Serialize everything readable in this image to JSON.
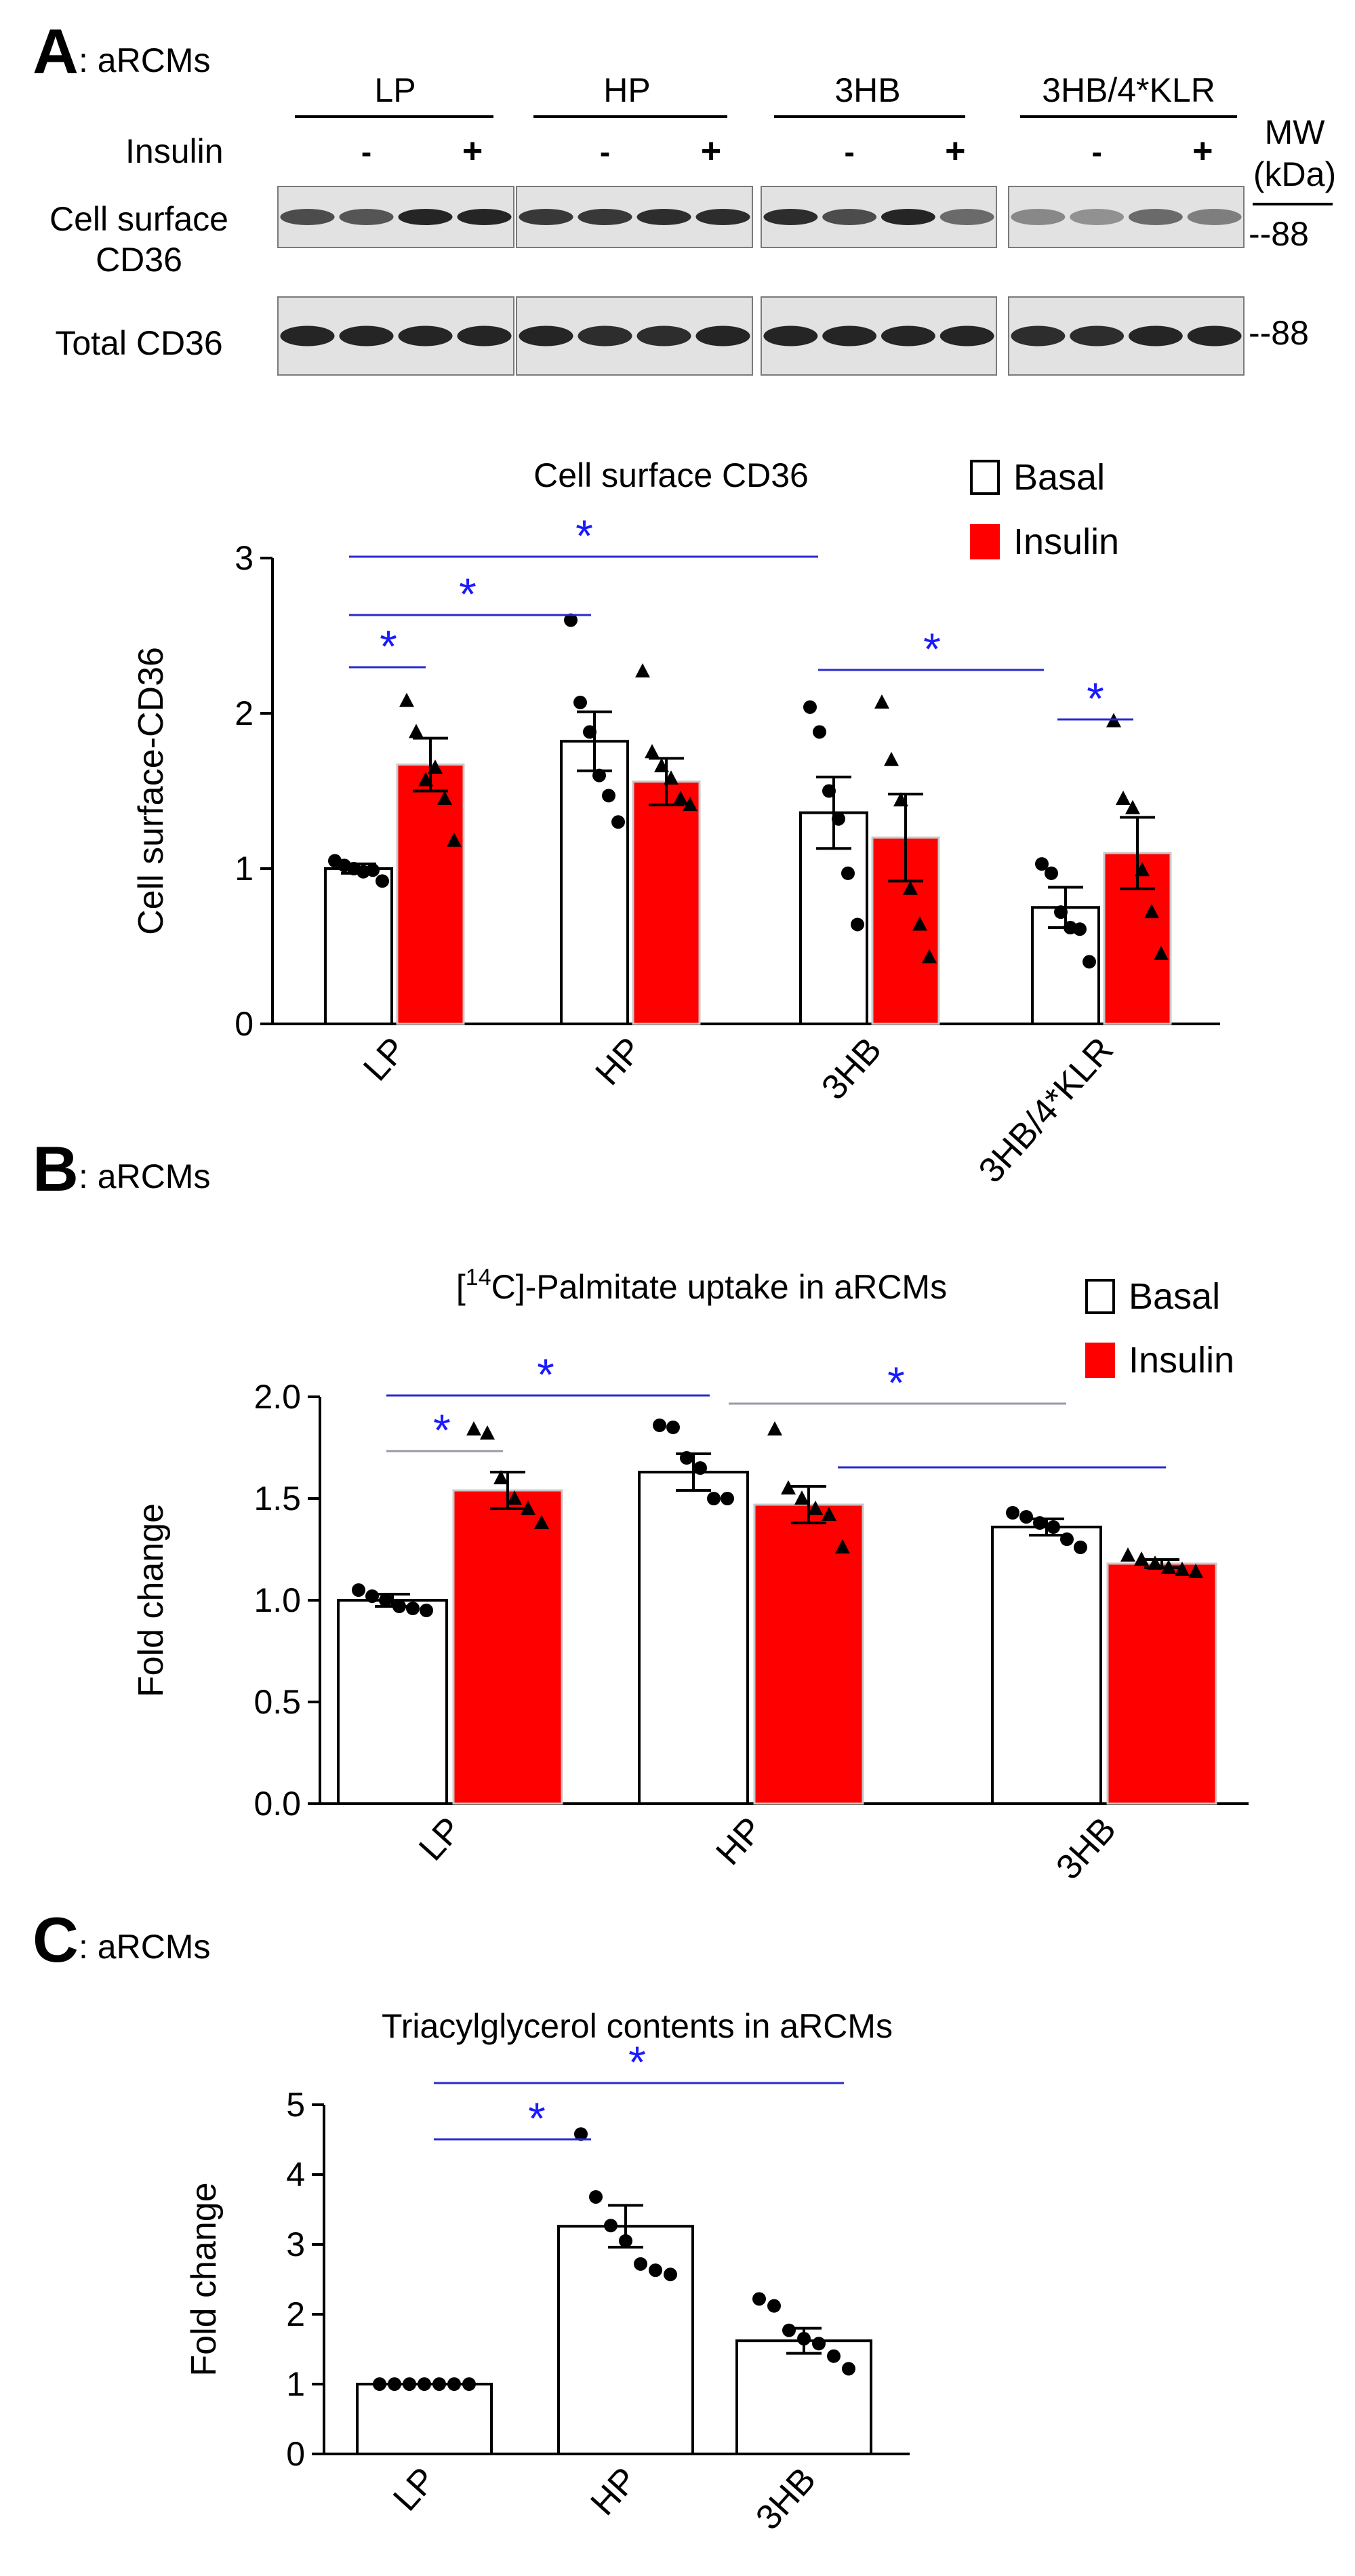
{
  "colors": {
    "insulin": "#ff0000",
    "basal": "#ffffff",
    "star": "#1a1aff",
    "line": "#2a2ad0",
    "grayline": "#9a9aa8",
    "blot_bg": "#e2e2e2",
    "band": "#1a1a1a"
  },
  "panelA": {
    "letter": "A",
    "suffix": ": aRCMs",
    "blot": {
      "groups": [
        "LP",
        "HP",
        "3HB",
        "3HB/4*KLR"
      ],
      "insulin_label": "Insulin",
      "minus": "-",
      "plus": "+",
      "mw_label": "MW",
      "kda_label": "(kDa)",
      "rows": [
        {
          "label1": "Cell surface",
          "label2": "CD36",
          "mw": "--88"
        },
        {
          "label1": "Total CD36",
          "label2": "",
          "mw": "--88"
        }
      ]
    }
  },
  "panelB": {
    "letter": "B",
    "suffix": ": aRCMs"
  },
  "panelC": {
    "letter": "C",
    "suffix": ": aRCMs"
  },
  "chart_data": [
    {
      "type": "bar",
      "title": "Cell surface CD36",
      "ylabel": "Cell surface-CD36",
      "xlabel": "",
      "ylim": [
        0,
        3
      ],
      "yticks": [
        "0",
        "1",
        "2",
        "3"
      ],
      "categories": [
        "LP",
        "HP",
        "3HB",
        "3HB/4*KLR"
      ],
      "series": [
        {
          "name": "Basal",
          "values": [
            1.0,
            1.82,
            1.36,
            0.75
          ],
          "sem": [
            0.03,
            0.19,
            0.23,
            0.13
          ],
          "points": [
            [
              1.05,
              1.02,
              1.0,
              0.98,
              0.99,
              0.92
            ],
            [
              2.6,
              2.07,
              1.88,
              1.6,
              1.47,
              1.3
            ],
            [
              2.04,
              1.88,
              1.5,
              1.32,
              0.97,
              0.64
            ],
            [
              1.03,
              0.97,
              0.72,
              0.62,
              0.61,
              0.4
            ]
          ]
        },
        {
          "name": "Insulin",
          "values": [
            1.67,
            1.56,
            1.2,
            1.1
          ],
          "sem": [
            0.17,
            0.15,
            0.28,
            0.23
          ],
          "points": [
            [
              2.08,
              1.88,
              1.57,
              1.65,
              1.45,
              1.18
            ],
            [
              2.27,
              1.75,
              1.66,
              1.58,
              1.45,
              1.41
            ],
            [
              2.07,
              1.7,
              1.44,
              0.87,
              0.64,
              0.43
            ],
            [
              1.95,
              1.45,
              1.39,
              0.99,
              0.72,
              0.45
            ]
          ]
        }
      ],
      "legend": [
        "Basal",
        "Insulin"
      ],
      "legend_position": "top-right",
      "significance": [
        "*",
        "*",
        "*",
        "*",
        "*"
      ]
    },
    {
      "type": "bar",
      "title": "[14C]-Palmitate uptake in aRCMs",
      "title_parts": [
        "[",
        "14",
        "C]-Palmitate uptake in aRCMs"
      ],
      "ylabel": "Fold change",
      "xlabel": "",
      "ylim": [
        0,
        2.0
      ],
      "yticks": [
        "0.0",
        "0.5",
        "1.0",
        "1.5",
        "2.0"
      ],
      "categories": [
        "LP",
        "HP",
        "3HB"
      ],
      "series": [
        {
          "name": "Basal",
          "values": [
            1.0,
            1.63,
            1.36
          ],
          "sem": [
            0.03,
            0.09,
            0.04
          ],
          "points": [
            [
              1.05,
              1.02,
              1.0,
              0.97,
              0.96,
              0.95
            ],
            [
              1.86,
              1.85,
              1.7,
              1.65,
              1.5,
              1.5
            ],
            [
              1.43,
              1.41,
              1.38,
              1.36,
              1.3,
              1.26
            ]
          ]
        },
        {
          "name": "Insulin",
          "values": [
            1.54,
            1.47,
            1.18
          ],
          "sem": [
            0.09,
            0.09,
            0.02
          ],
          "points": [
            [
              1.84,
              1.82,
              1.6,
              1.5,
              1.45,
              1.38
            ],
            [
              1.84,
              1.55,
              1.5,
              1.45,
              1.42,
              1.26
            ],
            [
              1.22,
              1.2,
              1.18,
              1.16,
              1.15,
              1.14
            ]
          ]
        }
      ],
      "legend": [
        "Basal",
        "Insulin"
      ],
      "legend_position": "top-right",
      "significance": [
        "*",
        "*",
        "*"
      ]
    },
    {
      "type": "bar",
      "title": "Triacylglycerol contents in aRCMs",
      "ylabel": "Fold change",
      "xlabel": "",
      "ylim": [
        0,
        5
      ],
      "yticks": [
        "0",
        "1",
        "2",
        "3",
        "4",
        "5"
      ],
      "categories": [
        "LP",
        "HP",
        "3HB"
      ],
      "series": [
        {
          "name": "Basal",
          "values": [
            1.0,
            3.26,
            1.62
          ],
          "sem": [
            0.0,
            0.3,
            0.18
          ],
          "points": [
            [
              1.0,
              1.0,
              1.0,
              1.0,
              1.0,
              1.0,
              1.0
            ],
            [
              4.58,
              3.68,
              3.27,
              3.05,
              2.72,
              2.63,
              2.57
            ],
            [
              2.22,
              2.12,
              1.77,
              1.65,
              1.58,
              1.4,
              1.22
            ]
          ]
        }
      ],
      "significance": [
        "*",
        "*"
      ]
    }
  ]
}
